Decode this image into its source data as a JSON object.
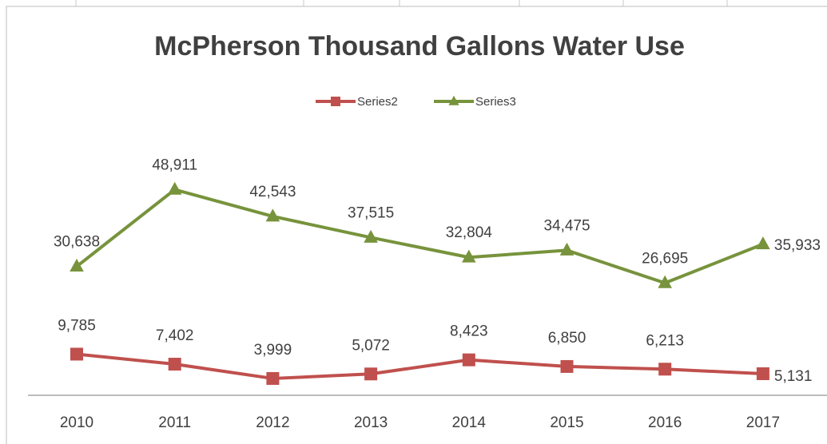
{
  "chart_data": {
    "type": "line",
    "title": "McPherson Thousand Gallons Water Use",
    "categories": [
      "2010",
      "2011",
      "2012",
      "2013",
      "2014",
      "2015",
      "2016",
      "2017"
    ],
    "series": [
      {
        "name": "Series2",
        "color": "#c0504d",
        "marker": "square",
        "values": [
          9785,
          7402,
          3999,
          5072,
          8423,
          6850,
          6213,
          5131
        ],
        "value_labels": [
          "9,785",
          "7,402",
          "3,999",
          "5,072",
          "8,423",
          "6,850",
          "6,213",
          "5,131"
        ]
      },
      {
        "name": "Series3",
        "color": "#77933c",
        "marker": "triangle",
        "values": [
          30638,
          48911,
          42543,
          37515,
          32804,
          34475,
          26695,
          35933
        ],
        "value_labels": [
          "30,638",
          "48,911",
          "42,543",
          "37,515",
          "32,804",
          "34,475",
          "26,695",
          "35,933"
        ]
      }
    ],
    "ylim": [
      0,
      60000
    ],
    "legend": "top"
  }
}
